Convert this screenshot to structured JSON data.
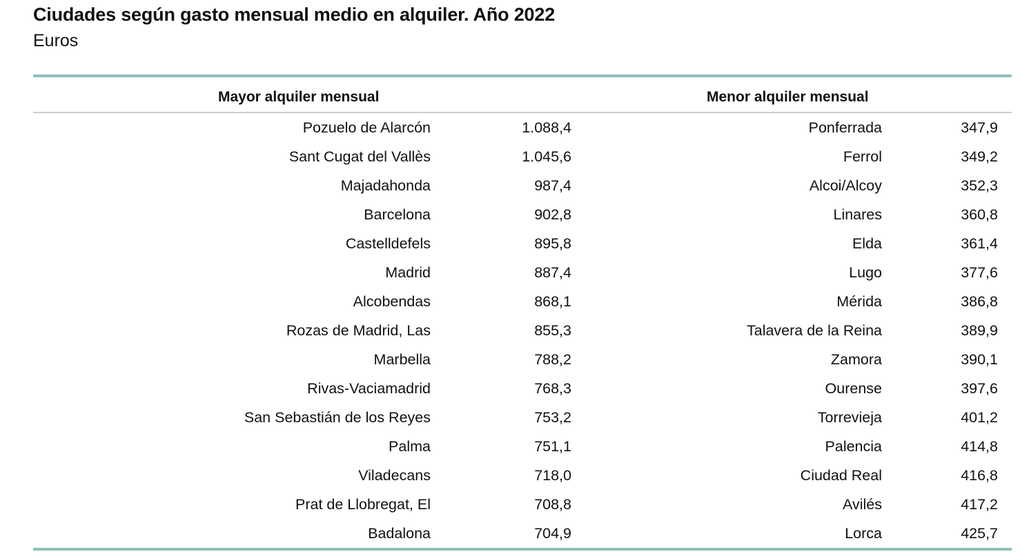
{
  "header": {
    "title": "Ciudades según gasto mensual medio en alquiler. Año 2022",
    "subtitle": "Euros"
  },
  "table": {
    "columns": [
      "Mayor alquiler mensual",
      "Menor alquiler mensual"
    ],
    "accent_color": "#8ec0b8",
    "left": [
      {
        "city": "Pozuelo de Alarcón",
        "value": "1.088,4"
      },
      {
        "city": "Sant Cugat del Vallès",
        "value": "1.045,6"
      },
      {
        "city": "Majadahonda",
        "value": "987,4"
      },
      {
        "city": "Barcelona",
        "value": "902,8"
      },
      {
        "city": "Castelldefels",
        "value": "895,8"
      },
      {
        "city": "Madrid",
        "value": "887,4"
      },
      {
        "city": "Alcobendas",
        "value": "868,1"
      },
      {
        "city": "Rozas de Madrid, Las",
        "value": "855,3"
      },
      {
        "city": "Marbella",
        "value": "788,2"
      },
      {
        "city": "Rivas-Vaciamadrid",
        "value": "768,3"
      },
      {
        "city": "San Sebastián de los Reyes",
        "value": "753,2"
      },
      {
        "city": "Palma",
        "value": "751,1"
      },
      {
        "city": "Viladecans",
        "value": "718,0"
      },
      {
        "city": "Prat de Llobregat, El",
        "value": "708,8"
      },
      {
        "city": "Badalona",
        "value": "704,9"
      }
    ],
    "right": [
      {
        "city": "Ponferrada",
        "value": "347,9"
      },
      {
        "city": "Ferrol",
        "value": "349,2"
      },
      {
        "city": "Alcoi/Alcoy",
        "value": "352,3"
      },
      {
        "city": "Linares",
        "value": "360,8"
      },
      {
        "city": "Elda",
        "value": "361,4"
      },
      {
        "city": "Lugo",
        "value": "377,6"
      },
      {
        "city": "Mérida",
        "value": "386,8"
      },
      {
        "city": "Talavera de la Reina",
        "value": "389,9"
      },
      {
        "city": "Zamora",
        "value": "390,1"
      },
      {
        "city": "Ourense",
        "value": "397,6"
      },
      {
        "city": "Torrevieja",
        "value": "401,2"
      },
      {
        "city": "Palencia",
        "value": "414,8"
      },
      {
        "city": "Ciudad Real",
        "value": "416,8"
      },
      {
        "city": "Avilés",
        "value": "417,2"
      },
      {
        "city": "Lorca",
        "value": "425,7"
      }
    ]
  }
}
